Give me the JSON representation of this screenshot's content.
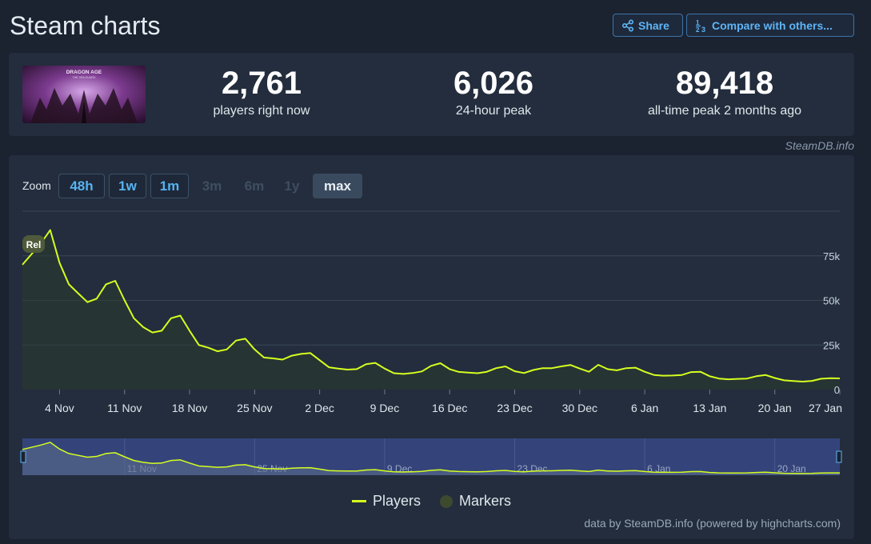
{
  "header": {
    "title": "Steam charts",
    "share_label": "Share",
    "compare_label": "Compare with others...",
    "icons": {
      "share": "share-icon",
      "compare": "sort-numbers-icon"
    }
  },
  "stats": [
    {
      "value": "2,761",
      "label": "players right now"
    },
    {
      "value": "6,026",
      "label": "24-hour peak"
    },
    {
      "value": "89,418",
      "label": "all-time peak 2 months ago"
    }
  ],
  "game_cover": {
    "title": "DRAGON AGE",
    "subtitle": "THE VEILGUARD"
  },
  "credit": "SteamDB.info",
  "zoom": {
    "label": "Zoom",
    "options": [
      {
        "label": "48h",
        "state": "enabled"
      },
      {
        "label": "1w",
        "state": "enabled"
      },
      {
        "label": "1m",
        "state": "enabled"
      },
      {
        "label": "3m",
        "state": "disabled"
      },
      {
        "label": "6m",
        "state": "disabled"
      },
      {
        "label": "1y",
        "state": "disabled"
      },
      {
        "label": "max",
        "state": "selected"
      }
    ]
  },
  "legend": {
    "players": "Players",
    "markers": "Markers"
  },
  "powered_by": "data by SteamDB.info (powered by highcharts.com)",
  "colors": {
    "line": "#d5ff1f",
    "navigator_bg": "#34447a",
    "marker": "#4e5a3a"
  },
  "chart_data": {
    "type": "line",
    "x_start": "2024-10-31",
    "x_end": "2025-01-27",
    "y_ticks": [
      {
        "value": 0,
        "label": "0"
      },
      {
        "value": 25000,
        "label": "25k"
      },
      {
        "value": 50000,
        "label": "50k"
      },
      {
        "value": 75000,
        "label": "75k"
      }
    ],
    "ylim": [
      0,
      100000
    ],
    "x_ticks": [
      {
        "date": "2024-11-04",
        "label": "4 Nov"
      },
      {
        "date": "2024-11-11",
        "label": "11 Nov"
      },
      {
        "date": "2024-11-18",
        "label": "18 Nov"
      },
      {
        "date": "2024-11-25",
        "label": "25 Nov"
      },
      {
        "date": "2024-12-02",
        "label": "2 Dec"
      },
      {
        "date": "2024-12-09",
        "label": "9 Dec"
      },
      {
        "date": "2024-12-16",
        "label": "16 Dec"
      },
      {
        "date": "2024-12-23",
        "label": "23 Dec"
      },
      {
        "date": "2024-12-30",
        "label": "30 Dec"
      },
      {
        "date": "2025-01-06",
        "label": "6 Jan"
      },
      {
        "date": "2025-01-13",
        "label": "13 Jan"
      },
      {
        "date": "2025-01-20",
        "label": "20 Jan"
      },
      {
        "date": "2025-01-27",
        "label": "27 Jan"
      }
    ],
    "navigator_ticks": [
      "11 Nov",
      "25 Nov",
      "9 Dec",
      "23 Dec",
      "6 Jan",
      "20 Jan"
    ],
    "marker": {
      "label": "Rel",
      "date": "2024-10-31"
    },
    "series": [
      {
        "name": "Players",
        "points": [
          [
            "2024-10-31",
            70000
          ],
          [
            "2024-11-02",
            82000
          ],
          [
            "2024-11-03",
            89418
          ],
          [
            "2024-11-04",
            71000
          ],
          [
            "2024-11-05",
            59000
          ],
          [
            "2024-11-06",
            54000
          ],
          [
            "2024-11-07",
            49000
          ],
          [
            "2024-11-08",
            51000
          ],
          [
            "2024-11-09",
            59000
          ],
          [
            "2024-11-10",
            61000
          ],
          [
            "2024-11-11",
            50000
          ],
          [
            "2024-11-12",
            40000
          ],
          [
            "2024-11-13",
            35000
          ],
          [
            "2024-11-14",
            32000
          ],
          [
            "2024-11-15",
            33000
          ],
          [
            "2024-11-16",
            40000
          ],
          [
            "2024-11-17",
            41500
          ],
          [
            "2024-11-18",
            33000
          ],
          [
            "2024-11-19",
            25000
          ],
          [
            "2024-11-20",
            23500
          ],
          [
            "2024-11-21",
            21500
          ],
          [
            "2024-11-22",
            22500
          ],
          [
            "2024-11-23",
            27500
          ],
          [
            "2024-11-24",
            28500
          ],
          [
            "2024-11-25",
            22500
          ],
          [
            "2024-11-26",
            18000
          ],
          [
            "2024-11-27",
            17500
          ],
          [
            "2024-11-28",
            16800
          ],
          [
            "2024-11-29",
            19000
          ],
          [
            "2024-11-30",
            20000
          ],
          [
            "2024-12-01",
            20500
          ],
          [
            "2024-12-02",
            16500
          ],
          [
            "2024-12-03",
            12500
          ],
          [
            "2024-12-04",
            11800
          ],
          [
            "2024-12-05",
            11200
          ],
          [
            "2024-12-06",
            11500
          ],
          [
            "2024-12-07",
            14200
          ],
          [
            "2024-12-08",
            15000
          ],
          [
            "2024-12-09",
            11800
          ],
          [
            "2024-12-10",
            9200
          ],
          [
            "2024-12-11",
            8800
          ],
          [
            "2024-12-12",
            9300
          ],
          [
            "2024-12-13",
            10200
          ],
          [
            "2024-12-14",
            13300
          ],
          [
            "2024-12-15",
            14800
          ],
          [
            "2024-12-16",
            11500
          ],
          [
            "2024-12-17",
            9900
          ],
          [
            "2024-12-18",
            9500
          ],
          [
            "2024-12-19",
            9200
          ],
          [
            "2024-12-20",
            10000
          ],
          [
            "2024-12-21",
            12000
          ],
          [
            "2024-12-22",
            13000
          ],
          [
            "2024-12-23",
            10300
          ],
          [
            "2024-12-24",
            9300
          ],
          [
            "2024-12-25",
            11000
          ],
          [
            "2024-12-26",
            12000
          ],
          [
            "2024-12-27",
            12000
          ],
          [
            "2024-12-28",
            13000
          ],
          [
            "2024-12-29",
            13800
          ],
          [
            "2024-12-30",
            11800
          ],
          [
            "2024-12-31",
            10000
          ],
          [
            "2025-01-01",
            13900
          ],
          [
            "2025-01-02",
            11500
          ],
          [
            "2025-01-03",
            10800
          ],
          [
            "2025-01-04",
            12000
          ],
          [
            "2025-01-05",
            12300
          ],
          [
            "2025-01-06",
            10000
          ],
          [
            "2025-01-07",
            8200
          ],
          [
            "2025-01-08",
            7800
          ],
          [
            "2025-01-09",
            7900
          ],
          [
            "2025-01-10",
            8200
          ],
          [
            "2025-01-11",
            9800
          ],
          [
            "2025-01-12",
            10000
          ],
          [
            "2025-01-13",
            7500
          ],
          [
            "2025-01-14",
            6200
          ],
          [
            "2025-01-15",
            5800
          ],
          [
            "2025-01-16",
            6000
          ],
          [
            "2025-01-17",
            6200
          ],
          [
            "2025-01-18",
            7500
          ],
          [
            "2025-01-19",
            8200
          ],
          [
            "2025-01-20",
            6500
          ],
          [
            "2025-01-21",
            5200
          ],
          [
            "2025-01-22",
            4800
          ],
          [
            "2025-01-23",
            4500
          ],
          [
            "2025-01-24",
            4900
          ],
          [
            "2025-01-25",
            6100
          ],
          [
            "2025-01-26",
            6400
          ],
          [
            "2025-01-27",
            6300
          ]
        ]
      }
    ]
  }
}
